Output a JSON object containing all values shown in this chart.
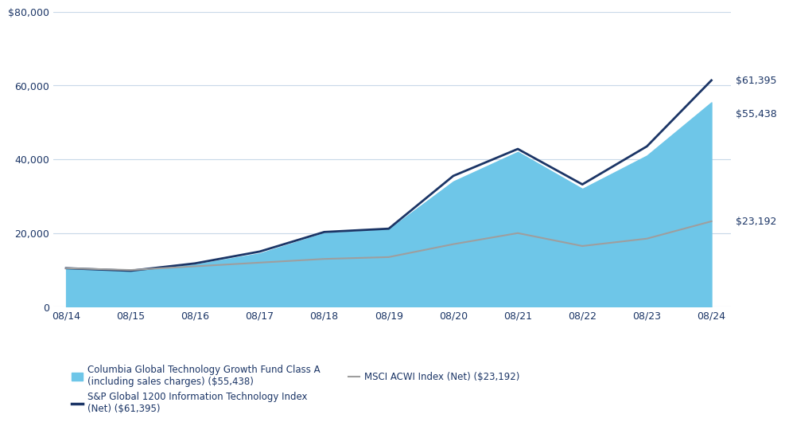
{
  "x_labels": [
    "08/14",
    "08/15",
    "08/16",
    "08/17",
    "08/18",
    "08/19",
    "08/20",
    "08/21",
    "08/22",
    "08/23",
    "08/24"
  ],
  "x_indices": [
    0,
    1,
    2,
    3,
    4,
    5,
    6,
    7,
    8,
    9,
    10
  ],
  "fund_values": [
    10500,
    9800,
    11500,
    14500,
    20000,
    21000,
    34000,
    42000,
    32000,
    41000,
    55438
  ],
  "sp_values": [
    10500,
    9800,
    11800,
    15000,
    20300,
    21200,
    35500,
    42800,
    33200,
    43500,
    61395
  ],
  "msci_values": [
    10500,
    10000,
    11000,
    12000,
    13000,
    13500,
    17000,
    20000,
    16500,
    18500,
    23192
  ],
  "fund_color": "#6EC6E8",
  "sp_color": "#1B3566",
  "msci_color": "#9E9E9E",
  "fund_fill_alpha": 1.0,
  "ylim": [
    0,
    80000
  ],
  "yticks": [
    0,
    20000,
    40000,
    60000,
    80000
  ],
  "ytick_labels": [
    "0",
    "20,000",
    "40,000",
    "60,000",
    "$80,000"
  ],
  "grid_color": "#C8D8E8",
  "background_color": "#FFFFFF",
  "end_label_fund": "$55,438",
  "end_label_sp": "$61,395",
  "end_label_msci": "$23,192",
  "legend_fund": "Columbia Global Technology Growth Fund Class A\n(including sales charges) ($55,438)",
  "legend_sp": "S&P Global 1200 Information Technology Index\n(Net) ($61,395)",
  "legend_msci": "MSCI ACWI Index (Net) ($23,192)",
  "text_color": "#1B3566",
  "label_fontsize": 9,
  "tick_fontsize": 9
}
